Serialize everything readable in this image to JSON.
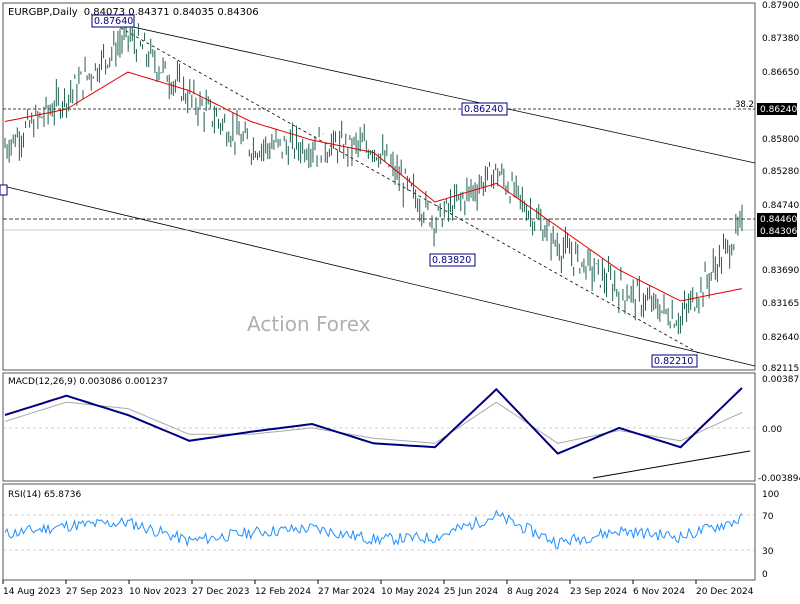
{
  "header": {
    "symbol_line": "EURGBP,Daily",
    "ohlc": "0.84073 0.84371 0.84035 0.84306"
  },
  "watermark": "Action Forex",
  "colors": {
    "price_bars": "#1f5f4f",
    "ema": "#e00000",
    "macd_main": "#000080",
    "macd_signal": "#a9a9a9",
    "rsi": "#1e90ff",
    "axis_text": "#000000",
    "label_box_border": "#000080"
  },
  "price_axis": {
    "ticks": [
      "0.87900",
      "0.87380",
      "0.86650",
      "0.86240",
      "0.85800",
      "0.85280",
      "0.84740",
      "0.84460",
      "0.84306",
      "0.83690",
      "0.83165",
      "0.82640",
      "0.82115"
    ]
  },
  "date_axis": {
    "ticks": [
      "14 Aug 2023",
      "27 Sep 2023",
      "10 Nov 2023",
      "27 Dec 2023",
      "12 Feb 2024",
      "27 Mar 2024",
      "10 May 2024",
      "25 Jun 2024",
      "8 Aug 2024",
      "23 Sep 2024",
      "6 Nov 2024",
      "20 Dec 2024"
    ]
  },
  "price_labels": {
    "high_label": "0.87640",
    "mid_high_label": "0.86240",
    "low1_label": "0.83820",
    "low2_label": "0.82210",
    "level_label": "0.84460",
    "current_label": "0.84306",
    "fib_label": "38.2",
    "fib_value": "0.86240"
  },
  "macd": {
    "title": "MACD(12,26,9) 0.003086 0.001237",
    "ticks": [
      "0.003878",
      "0.00",
      "-0.003894"
    ]
  },
  "rsi": {
    "title": "RSI(14) 65.8736",
    "ticks": [
      "100",
      "70",
      "30",
      "0"
    ]
  },
  "chart_data": [
    {
      "type": "ohlc",
      "title": "EURGBP,Daily",
      "current": {
        "open": 0.84073,
        "high": 0.84371,
        "low": 0.84035,
        "close": 0.84306
      },
      "ylim": [
        0.82,
        0.879
      ],
      "x": [
        "14 Aug 2023",
        "27 Sep 2023",
        "10 Nov 2023",
        "27 Dec 2023",
        "12 Feb 2024",
        "27 Mar 2024",
        "10 May 2024",
        "25 Jun 2024",
        "8 Aug 2024",
        "23 Sep 2024",
        "6 Nov 2024",
        "20 Dec 2024",
        "10 Jan 2025"
      ],
      "close": [
        0.856,
        0.864,
        0.874,
        0.864,
        0.856,
        0.856,
        0.856,
        0.844,
        0.852,
        0.84,
        0.833,
        0.828,
        0.843
      ],
      "series": [
        {
          "name": "EMA",
          "values": [
            0.86,
            0.862,
            0.868,
            0.865,
            0.86,
            0.857,
            0.855,
            0.847,
            0.85,
            0.843,
            0.836,
            0.831,
            0.833
          ]
        }
      ],
      "levels": [
        0.8624,
        0.8446,
        0.84306
      ],
      "annotations": [
        {
          "label": "0.87640",
          "x": "24 Oct 2023",
          "y": 0.8764
        },
        {
          "label": "0.86240",
          "x": "8 Aug 2024",
          "y": 0.8624
        },
        {
          "label": "0.83820",
          "x": "1 Jun 2024",
          "y": 0.8382
        },
        {
          "label": "0.82210",
          "x": "12 Dec 2024",
          "y": 0.8221
        },
        {
          "label": "38.2",
          "y": 0.8624
        }
      ]
    },
    {
      "type": "line",
      "title": "MACD(12,26,9) 0.003086 0.001237",
      "ylim": [
        -0.003894,
        0.003878
      ],
      "x": [
        "14 Aug 2023",
        "27 Sep 2023",
        "10 Nov 2023",
        "27 Dec 2023",
        "12 Feb 2024",
        "27 Mar 2024",
        "10 May 2024",
        "25 Jun 2024",
        "8 Aug 2024",
        "23 Sep 2024",
        "6 Nov 2024",
        "20 Dec 2024",
        "10 Jan 2025"
      ],
      "series": [
        {
          "values": [
            0.001,
            0.0025,
            0.001,
            -0.001,
            -0.0003,
            0.0003,
            -0.0012,
            -0.0015,
            0.003,
            -0.002,
            0.0,
            -0.0015,
            0.0031
          ]
        },
        {
          "values": [
            0.0005,
            0.002,
            0.0015,
            -0.0005,
            -0.0005,
            0.0,
            -0.0008,
            -0.0012,
            0.002,
            -0.0012,
            -0.0002,
            -0.001,
            0.0012
          ]
        }
      ]
    },
    {
      "type": "line",
      "title": "RSI(14) 65.8736",
      "ylim": [
        0,
        100
      ],
      "x": [
        "14 Aug 2023",
        "27 Sep 2023",
        "10 Nov 2023",
        "27 Dec 2023",
        "12 Feb 2024",
        "27 Mar 2024",
        "10 May 2024",
        "25 Jun 2024",
        "8 Aug 2024",
        "23 Sep 2024",
        "6 Nov 2024",
        "20 Dec 2024",
        "10 Jan 2025"
      ],
      "series": [
        {
          "name": "RSI(14)",
          "values": [
            48,
            58,
            62,
            40,
            50,
            55,
            42,
            44,
            70,
            38,
            52,
            45,
            65.87
          ]
        }
      ]
    }
  ]
}
